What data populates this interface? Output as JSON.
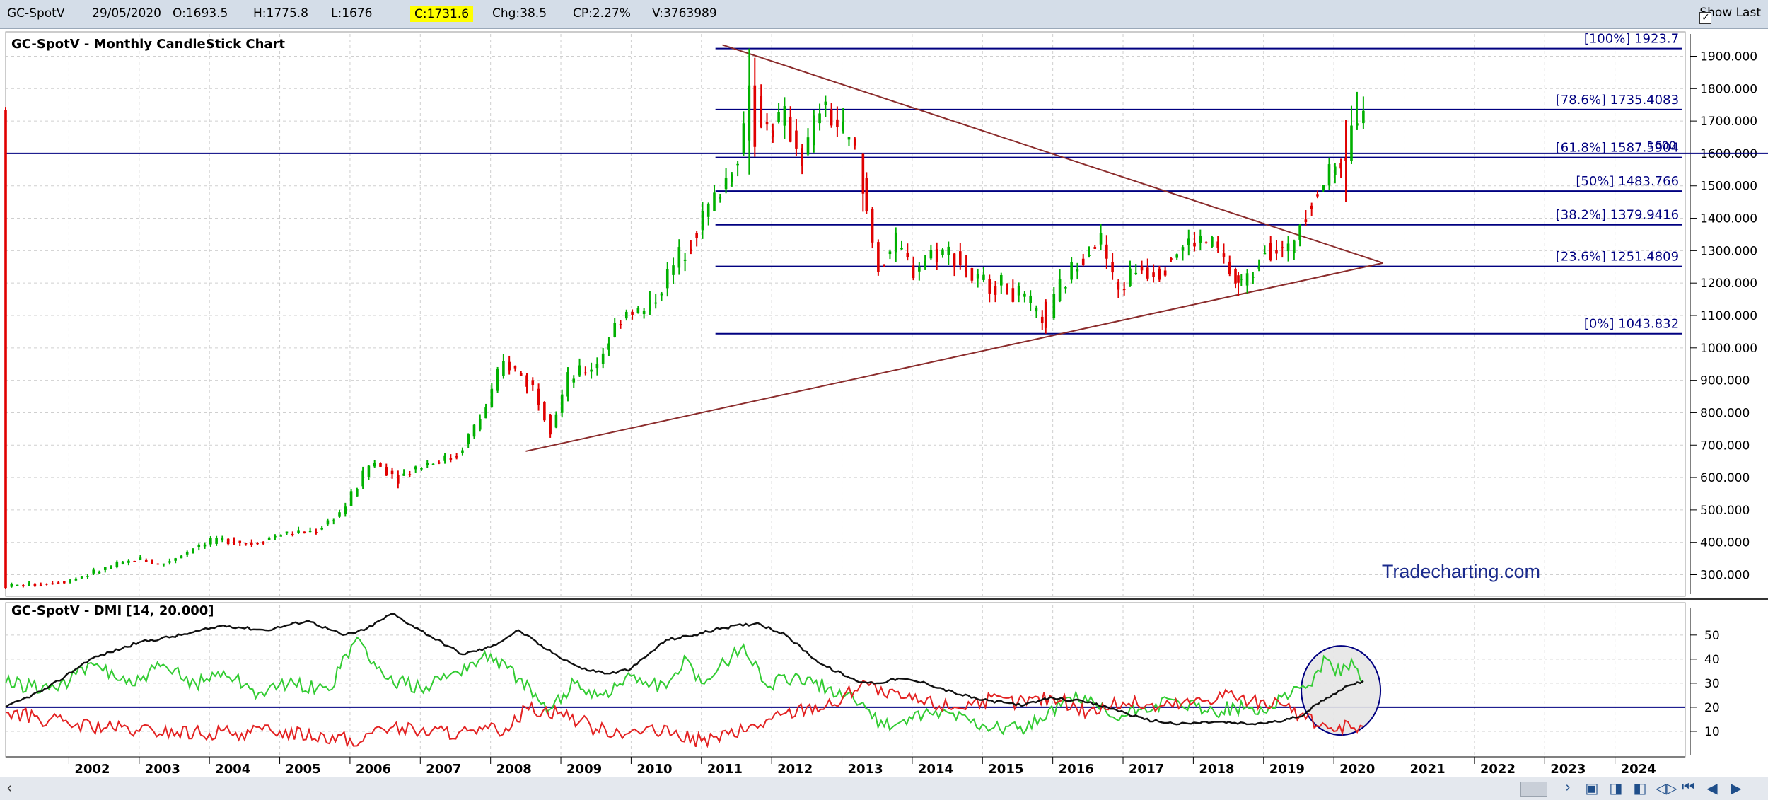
{
  "header": {
    "symbol": "GC-SpotV",
    "date": "29/05/2020",
    "open": "O:1693.5",
    "high": "H:1775.8",
    "low": "L:1676",
    "close": "C:1731.6",
    "change": "Chg:38.5",
    "change_pct": "CP:2.27%",
    "volume": "V:3763989",
    "show_last_label": "Show Last",
    "show_last_checked": true
  },
  "colors": {
    "up": "#00b000",
    "down": "#e00000",
    "fib": "#000080",
    "trendline": "#8b2c2c",
    "plus_di": "#33cc33",
    "minus_di": "#e32222",
    "adx": "#111111",
    "watermark": "#1a2a8c",
    "close_highlight": "#ffff00"
  },
  "chart_data": [
    {
      "type": "candlestick",
      "title": "GC-SpotV - Monthly CandleStick Chart",
      "interval": "monthly",
      "watermark": "Tradecharting.com",
      "x_range": [
        2001.1,
        2025.0
      ],
      "ylim": [
        240,
        1960
      ],
      "y_ticks": [
        300,
        400,
        500,
        600,
        700,
        800,
        900,
        1000,
        1100,
        1200,
        1300,
        1400,
        1500,
        1600,
        1700,
        1800,
        1900
      ],
      "y_tick_labels": [
        "300.000",
        "400.000",
        "500.000",
        "600.000",
        "700.000",
        "800.000",
        "900.000",
        "1000.000",
        "1100.000",
        "1200.000",
        "1300.000",
        "1400.000",
        "1500.000",
        "1600.000",
        "1700.000",
        "1800.000",
        "1900.000"
      ],
      "x_labels": [
        "2002",
        "2003",
        "2004",
        "2005",
        "2006",
        "2007",
        "2008",
        "2009",
        "2010",
        "2011",
        "2012",
        "2013",
        "2014",
        "2015",
        "2016",
        "2017",
        "2018",
        "2019",
        "2020",
        "2021",
        "2022",
        "2023",
        "2024"
      ],
      "grid": true,
      "price_path": [
        [
          2001.1,
          265
        ],
        [
          2001.5,
          270
        ],
        [
          2002.0,
          282
        ],
        [
          2002.5,
          318
        ],
        [
          2003.0,
          350
        ],
        [
          2003.3,
          330
        ],
        [
          2003.8,
          385
        ],
        [
          2004.2,
          410
        ],
        [
          2004.6,
          395
        ],
        [
          2005.0,
          425
        ],
        [
          2005.5,
          435
        ],
        [
          2005.9,
          500
        ],
        [
          2006.3,
          650
        ],
        [
          2006.7,
          600
        ],
        [
          2007.0,
          640
        ],
        [
          2007.5,
          665
        ],
        [
          2007.9,
          800
        ],
        [
          2008.2,
          960
        ],
        [
          2008.6,
          880
        ],
        [
          2008.85,
          760
        ],
        [
          2009.1,
          900
        ],
        [
          2009.5,
          950
        ],
        [
          2009.9,
          1120
        ],
        [
          2010.2,
          1110
        ],
        [
          2010.6,
          1250
        ],
        [
          2010.95,
          1380
        ],
        [
          2011.3,
          1500
        ],
        [
          2011.55,
          1620
        ],
        [
          2011.7,
          1800
        ],
        [
          2011.9,
          1680
        ],
        [
          2012.2,
          1700
        ],
        [
          2012.45,
          1580
        ],
        [
          2012.7,
          1750
        ],
        [
          2012.95,
          1680
        ],
        [
          2013.2,
          1600
        ],
        [
          2013.35,
          1420
        ],
        [
          2013.5,
          1250
        ],
        [
          2013.75,
          1320
        ],
        [
          2014.0,
          1240
        ],
        [
          2014.3,
          1300
        ],
        [
          2014.6,
          1290
        ],
        [
          2014.9,
          1200
        ],
        [
          2015.2,
          1200
        ],
        [
          2015.5,
          1160
        ],
        [
          2015.9,
          1080
        ],
        [
          2016.1,
          1180
        ],
        [
          2016.5,
          1320
        ],
        [
          2016.7,
          1330
        ],
        [
          2016.9,
          1170
        ],
        [
          2017.2,
          1250
        ],
        [
          2017.5,
          1240
        ],
        [
          2017.7,
          1290
        ],
        [
          2018.0,
          1330
        ],
        [
          2018.3,
          1320
        ],
        [
          2018.6,
          1200
        ],
        [
          2018.8,
          1210
        ],
        [
          2019.0,
          1320
        ],
        [
          2019.35,
          1290
        ],
        [
          2019.55,
          1420
        ],
        [
          2019.8,
          1500
        ],
        [
          2020.0,
          1560
        ],
        [
          2020.2,
          1620
        ],
        [
          2020.42,
          1731
        ]
      ],
      "special_candles": [
        {
          "x": 2011.68,
          "o": 1640,
          "h": 1923.7,
          "l": 1535,
          "c": 1810
        },
        {
          "x": 2011.76,
          "o": 1810,
          "h": 1895,
          "l": 1590,
          "c": 1620
        },
        {
          "x": 2013.3,
          "o": 1598,
          "h": 1600,
          "l": 1420,
          "c": 1476
        },
        {
          "x": 2015.9,
          "o": 1142,
          "h": 1150,
          "l": 1043.8,
          "c": 1061
        },
        {
          "x": 2018.64,
          "o": 1224,
          "h": 1235,
          "l": 1160,
          "c": 1201
        },
        {
          "x": 2020.17,
          "o": 1587,
          "h": 1704,
          "l": 1451,
          "c": 1577
        },
        {
          "x": 2020.25,
          "o": 1577,
          "h": 1747,
          "l": 1567,
          "c": 1686
        },
        {
          "x": 2020.33,
          "o": 1686,
          "h": 1790,
          "l": 1672,
          "c": 1693
        },
        {
          "x": 2020.42,
          "o": 1693.5,
          "h": 1775.8,
          "l": 1676,
          "c": 1731.6
        }
      ],
      "fib_retracement": {
        "x_start": 2011.2,
        "x_end": 2024.95,
        "levels": [
          {
            "label": "[100%] 1923.7",
            "value": 1923.7
          },
          {
            "label": "[78.6%] 1735.4083",
            "value": 1735.4083
          },
          {
            "label": "[61.8%] 1587.5904",
            "value": 1587.5904
          },
          {
            "label": "[50%] 1483.766",
            "value": 1483.766
          },
          {
            "label": "[38.2%] 1379.9416",
            "value": 1379.9416
          },
          {
            "label": "[23.6%] 1251.4809",
            "value": 1251.4809
          },
          {
            "label": "[0%] 1043.832",
            "value": 1043.832
          }
        ]
      },
      "horizontal_line": {
        "value": 1600,
        "label": "1600"
      },
      "trendlines": [
        {
          "from": [
            2011.3,
            1935
          ],
          "to": [
            2020.7,
            1262
          ]
        },
        {
          "from": [
            2008.5,
            681
          ],
          "to": [
            2020.7,
            1262
          ]
        }
      ]
    },
    {
      "type": "line",
      "title": "GC-SpotV - DMI [14, 20.000]",
      "ylim": [
        0,
        57
      ],
      "y_ticks": [
        10,
        20,
        30,
        40,
        50
      ],
      "y_tick_labels": [
        "10",
        "20",
        "30",
        "40",
        "50"
      ],
      "reference_line": 20,
      "annotation": "circle around early 2020",
      "series": [
        {
          "key": "plus_di",
          "values": [
            [
              2001.1,
              30
            ],
            [
              2001.8,
              28
            ],
            [
              2002.4,
              38
            ],
            [
              2002.9,
              29
            ],
            [
              2003.3,
              37
            ],
            [
              2003.8,
              30
            ],
            [
              2004.2,
              35
            ],
            [
              2004.7,
              26
            ],
            [
              2005.2,
              30
            ],
            [
              2005.7,
              27
            ],
            [
              2006.1,
              49
            ],
            [
              2006.5,
              32
            ],
            [
              2007.0,
              28
            ],
            [
              2007.5,
              35
            ],
            [
              2008.0,
              42
            ],
            [
              2008.4,
              32
            ],
            [
              2008.8,
              18
            ],
            [
              2009.2,
              30
            ],
            [
              2009.6,
              25
            ],
            [
              2010.0,
              33
            ],
            [
              2010.5,
              28
            ],
            [
              2010.8,
              40
            ],
            [
              2011.0,
              30
            ],
            [
              2011.6,
              46
            ],
            [
              2011.9,
              30
            ],
            [
              2012.3,
              32
            ],
            [
              2012.8,
              28
            ],
            [
              2013.3,
              22
            ],
            [
              2013.6,
              12
            ],
            [
              2014.0,
              15
            ],
            [
              2014.5,
              18
            ],
            [
              2015.0,
              13
            ],
            [
              2015.5,
              11
            ],
            [
              2015.9,
              15
            ],
            [
              2016.2,
              24
            ],
            [
              2016.5,
              22
            ],
            [
              2016.9,
              15
            ],
            [
              2017.3,
              20
            ],
            [
              2017.8,
              22
            ],
            [
              2018.2,
              18
            ],
            [
              2018.6,
              20
            ],
            [
              2019.0,
              18
            ],
            [
              2019.3,
              26
            ],
            [
              2019.6,
              28
            ],
            [
              2019.9,
              40
            ],
            [
              2020.1,
              33
            ],
            [
              2020.25,
              40
            ],
            [
              2020.42,
              30
            ]
          ]
        },
        {
          "key": "minus_di",
          "values": [
            [
              2001.1,
              18
            ],
            [
              2002.0,
              13
            ],
            [
              2003.0,
              10
            ],
            [
              2004.0,
              9
            ],
            [
              2005.0,
              10
            ],
            [
              2006.0,
              7
            ],
            [
              2006.1,
              4
            ],
            [
              2006.4,
              12
            ],
            [
              2007.0,
              10
            ],
            [
              2007.8,
              9
            ],
            [
              2008.3,
              12
            ],
            [
              2008.5,
              20
            ],
            [
              2009.0,
              18
            ],
            [
              2009.5,
              11
            ],
            [
              2010.0,
              10
            ],
            [
              2010.6,
              9
            ],
            [
              2011.0,
              6
            ],
            [
              2011.6,
              10
            ],
            [
              2012.0,
              15
            ],
            [
              2012.5,
              20
            ],
            [
              2012.9,
              21
            ],
            [
              2013.3,
              31
            ],
            [
              2013.6,
              25
            ],
            [
              2014.0,
              23
            ],
            [
              2014.6,
              20
            ],
            [
              2015.0,
              23
            ],
            [
              2015.5,
              22
            ],
            [
              2016.0,
              24
            ],
            [
              2016.5,
              18
            ],
            [
              2017.0,
              22
            ],
            [
              2017.5,
              20
            ],
            [
              2018.0,
              22
            ],
            [
              2018.5,
              26
            ],
            [
              2018.8,
              22
            ],
            [
              2019.0,
              23
            ],
            [
              2019.4,
              18
            ],
            [
              2019.8,
              12
            ],
            [
              2020.0,
              10
            ],
            [
              2020.2,
              14
            ],
            [
              2020.42,
              12
            ]
          ]
        },
        {
          "key": "adx",
          "values": [
            [
              2001.1,
              20
            ],
            [
              2001.7,
              28
            ],
            [
              2002.3,
              40
            ],
            [
              2003.0,
              47
            ],
            [
              2003.6,
              50
            ],
            [
              2004.2,
              54
            ],
            [
              2004.8,
              52
            ],
            [
              2005.4,
              56
            ],
            [
              2005.9,
              50
            ],
            [
              2006.2,
              52
            ],
            [
              2006.6,
              59
            ],
            [
              2007.0,
              52
            ],
            [
              2007.6,
              42
            ],
            [
              2008.0,
              45
            ],
            [
              2008.4,
              52
            ],
            [
              2008.8,
              44
            ],
            [
              2009.3,
              36
            ],
            [
              2009.7,
              34
            ],
            [
              2010.0,
              36
            ],
            [
              2010.5,
              48
            ],
            [
              2010.9,
              50
            ],
            [
              2011.3,
              53
            ],
            [
              2011.8,
              55
            ],
            [
              2012.2,
              50
            ],
            [
              2012.7,
              38
            ],
            [
              2013.2,
              31
            ],
            [
              2013.5,
              30
            ],
            [
              2013.8,
              32
            ],
            [
              2014.2,
              30
            ],
            [
              2014.6,
              26
            ],
            [
              2015.0,
              23
            ],
            [
              2015.6,
              21
            ],
            [
              2016.0,
              24
            ],
            [
              2016.5,
              22
            ],
            [
              2016.9,
              19
            ],
            [
              2017.3,
              15
            ],
            [
              2017.8,
              13
            ],
            [
              2018.3,
              14
            ],
            [
              2018.8,
              13
            ],
            [
              2019.2,
              14
            ],
            [
              2019.5,
              16
            ],
            [
              2019.9,
              24
            ],
            [
              2020.2,
              29
            ],
            [
              2020.42,
              31
            ]
          ]
        }
      ]
    }
  ]
}
